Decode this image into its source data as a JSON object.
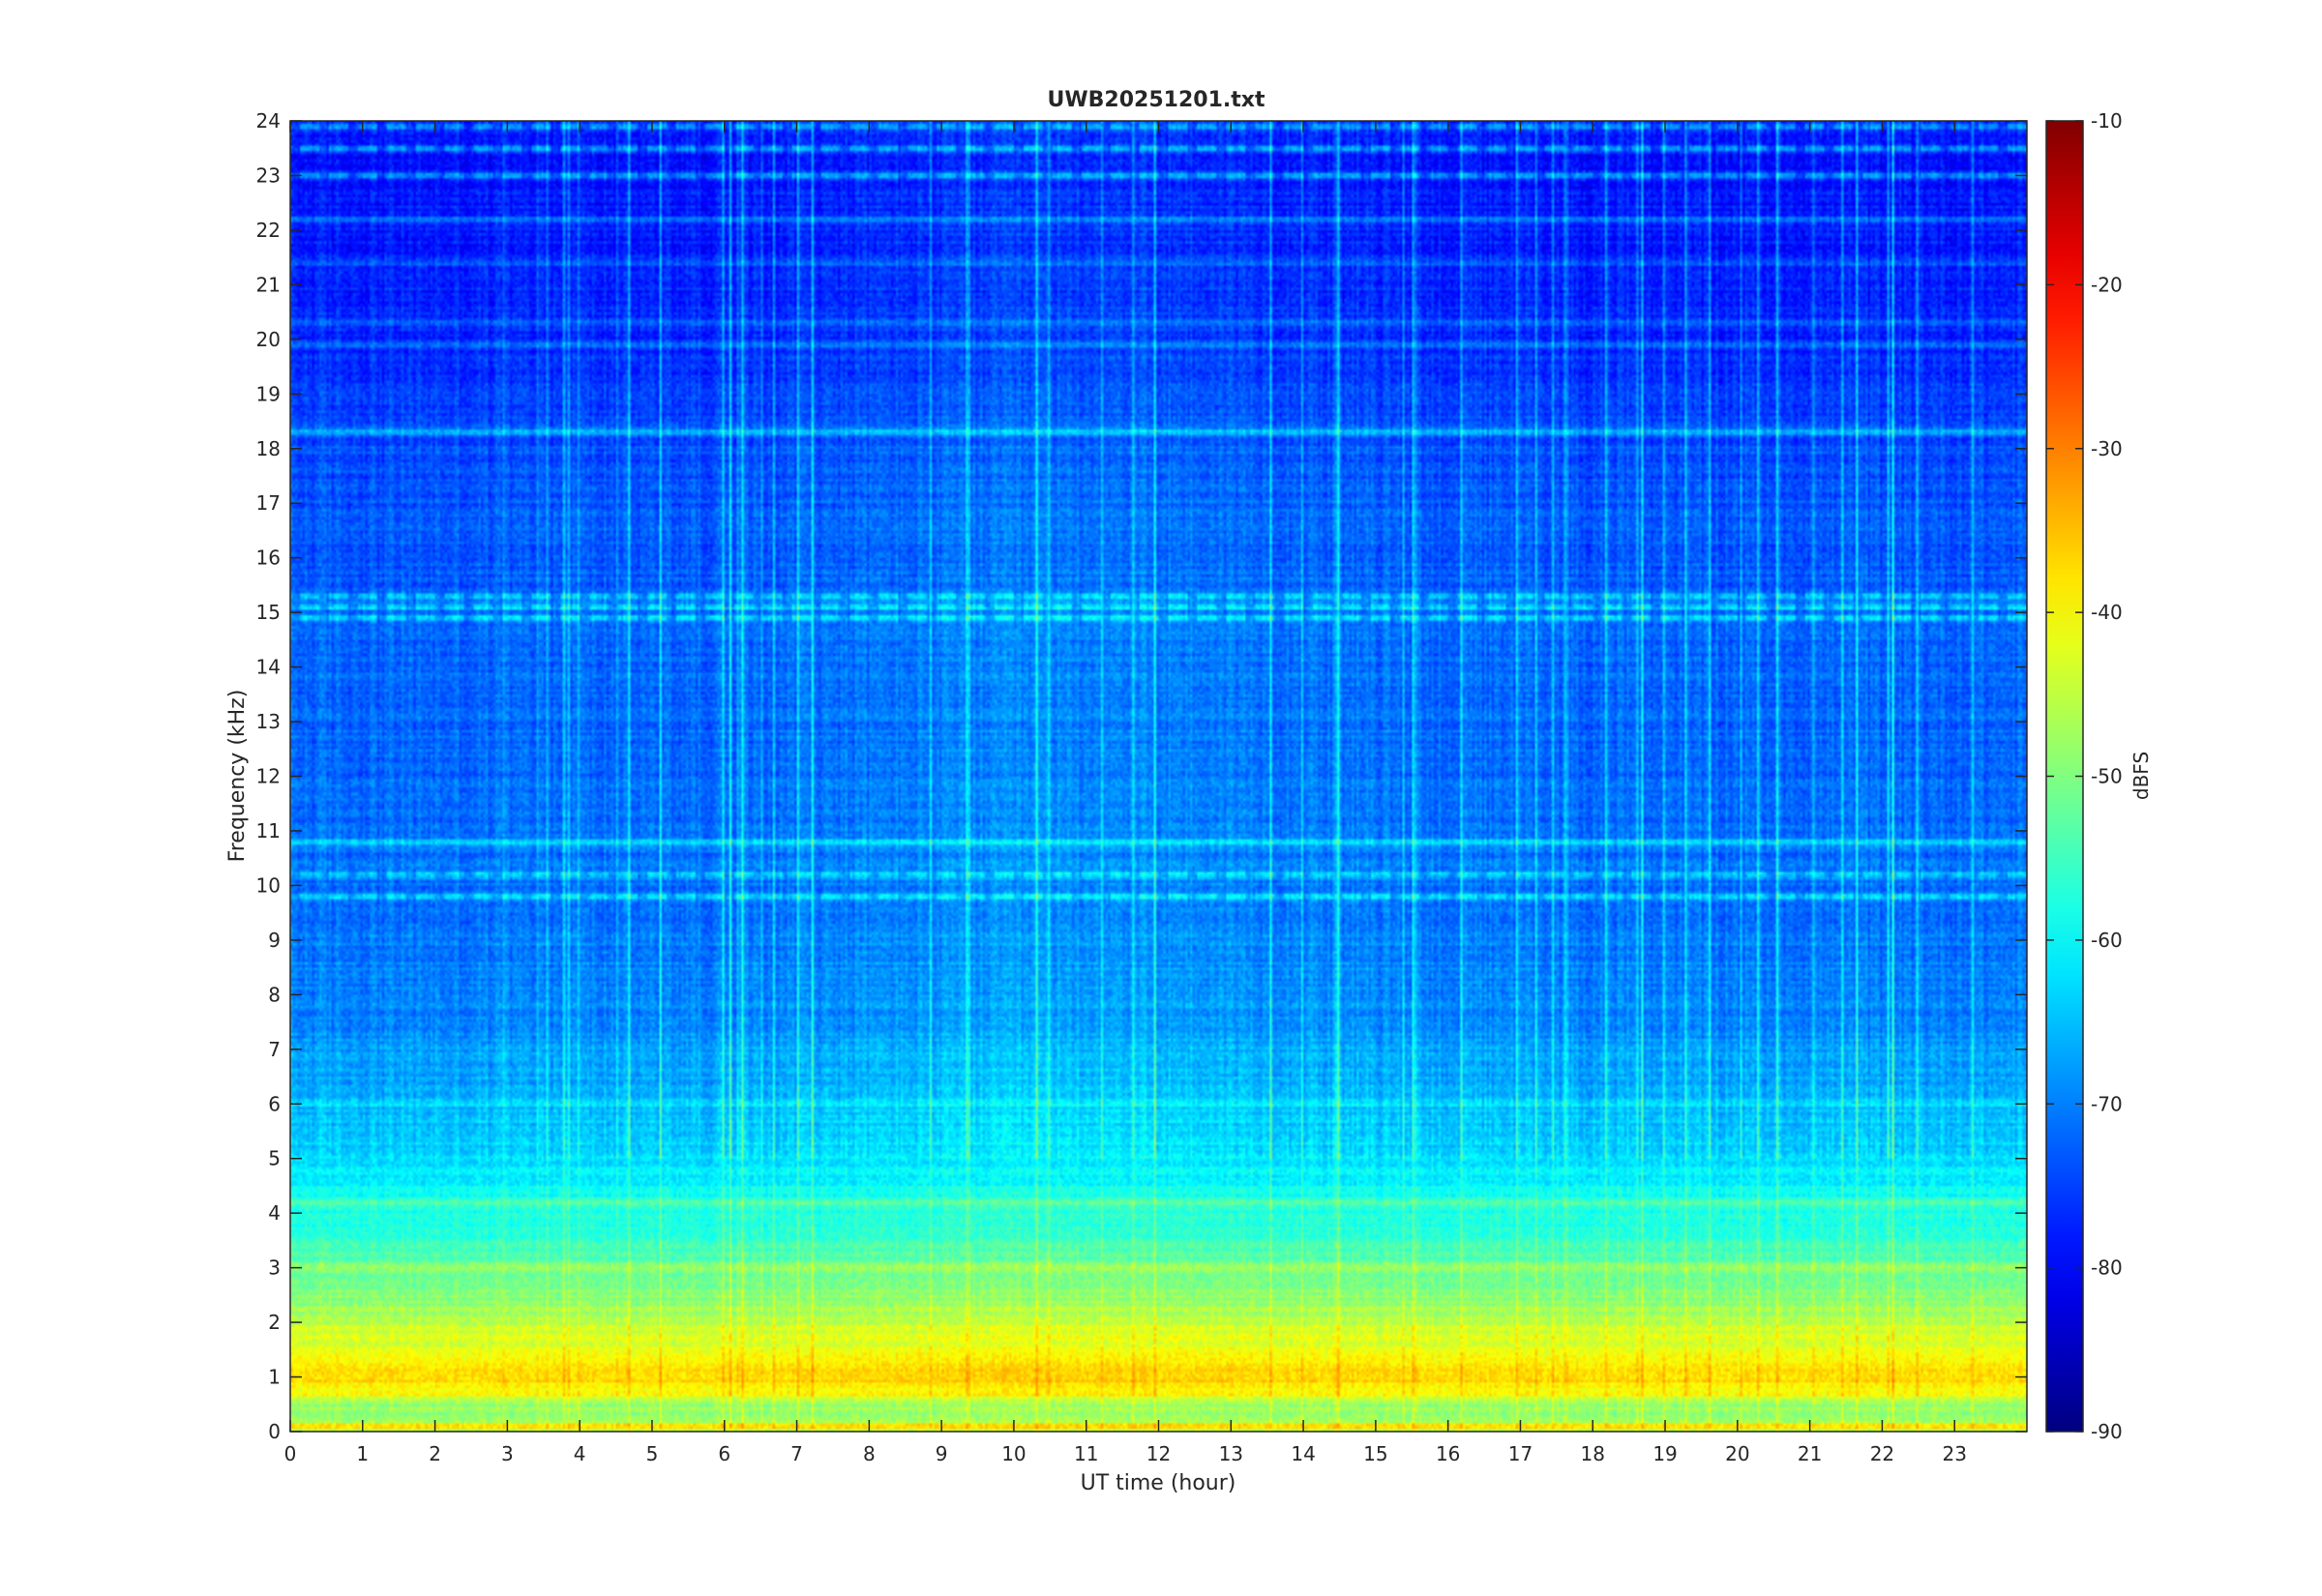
{
  "chart_data": {
    "type": "heatmap",
    "title": "UWB20251201.txt",
    "xlabel": "UT time (hour)",
    "ylabel": "Frequency (kHz)",
    "xlim": [
      0,
      24
    ],
    "ylim": [
      0,
      24
    ],
    "x_ticks": [
      "0",
      "1",
      "2",
      "3",
      "4",
      "5",
      "6",
      "7",
      "8",
      "9",
      "10",
      "11",
      "12",
      "13",
      "14",
      "15",
      "16",
      "17",
      "18",
      "19",
      "20",
      "21",
      "22",
      "23"
    ],
    "y_ticks": [
      "0",
      "1",
      "2",
      "3",
      "4",
      "5",
      "6",
      "7",
      "8",
      "9",
      "10",
      "11",
      "12",
      "13",
      "14",
      "15",
      "16",
      "17",
      "18",
      "19",
      "20",
      "21",
      "22",
      "23",
      "24"
    ],
    "colorbar": {
      "label": "dBFS",
      "range": [
        -90,
        -10
      ],
      "ticks": [
        "-10",
        "-20",
        "-30",
        "-40",
        "-50",
        "-60",
        "-70",
        "-80",
        "-90"
      ],
      "colormap": "jet"
    },
    "grid": false,
    "frequency_profile_dbfs": [
      {
        "freq_khz": 0.5,
        "level": -48
      },
      {
        "freq_khz": 1.0,
        "level": -36
      },
      {
        "freq_khz": 1.5,
        "level": -42
      },
      {
        "freq_khz": 2.0,
        "level": -45
      },
      {
        "freq_khz": 2.5,
        "level": -50
      },
      {
        "freq_khz": 3.0,
        "level": -52
      },
      {
        "freq_khz": 3.5,
        "level": -56
      },
      {
        "freq_khz": 4.0,
        "level": -58
      },
      {
        "freq_khz": 4.5,
        "level": -60
      },
      {
        "freq_khz": 5.0,
        "level": -63
      },
      {
        "freq_khz": 6.0,
        "level": -66
      },
      {
        "freq_khz": 7.0,
        "level": -68
      },
      {
        "freq_khz": 8.0,
        "level": -70
      },
      {
        "freq_khz": 10.0,
        "level": -71
      },
      {
        "freq_khz": 12.0,
        "level": -72
      },
      {
        "freq_khz": 14.0,
        "level": -72
      },
      {
        "freq_khz": 16.0,
        "level": -73
      },
      {
        "freq_khz": 18.0,
        "level": -74
      },
      {
        "freq_khz": 20.0,
        "level": -77
      },
      {
        "freq_khz": 22.0,
        "level": -78
      },
      {
        "freq_khz": 24.0,
        "level": -79
      }
    ],
    "narrowband_lines": [
      {
        "freq_khz": 0.1,
        "level": -36
      },
      {
        "freq_khz": 0.7,
        "level": -38
      },
      {
        "freq_khz": 1.1,
        "level": -38
      },
      {
        "freq_khz": 3.0,
        "level": -47
      },
      {
        "freq_khz": 4.2,
        "level": -52
      },
      {
        "freq_khz": 6.0,
        "level": -62
      },
      {
        "freq_khz": 9.8,
        "level": -62
      },
      {
        "freq_khz": 10.2,
        "level": -62
      },
      {
        "freq_khz": 10.8,
        "level": -63
      },
      {
        "freq_khz": 14.9,
        "level": -61
      },
      {
        "freq_khz": 15.1,
        "level": -61
      },
      {
        "freq_khz": 15.3,
        "level": -62
      },
      {
        "freq_khz": 18.3,
        "level": -64
      },
      {
        "freq_khz": 19.9,
        "level": -70
      },
      {
        "freq_khz": 20.3,
        "level": -72
      },
      {
        "freq_khz": 21.4,
        "level": -73
      },
      {
        "freq_khz": 22.2,
        "level": -72
      },
      {
        "freq_khz": 23.0,
        "level": -68
      },
      {
        "freq_khz": 23.5,
        "level": -66
      },
      {
        "freq_khz": 23.9,
        "level": -66
      }
    ]
  }
}
